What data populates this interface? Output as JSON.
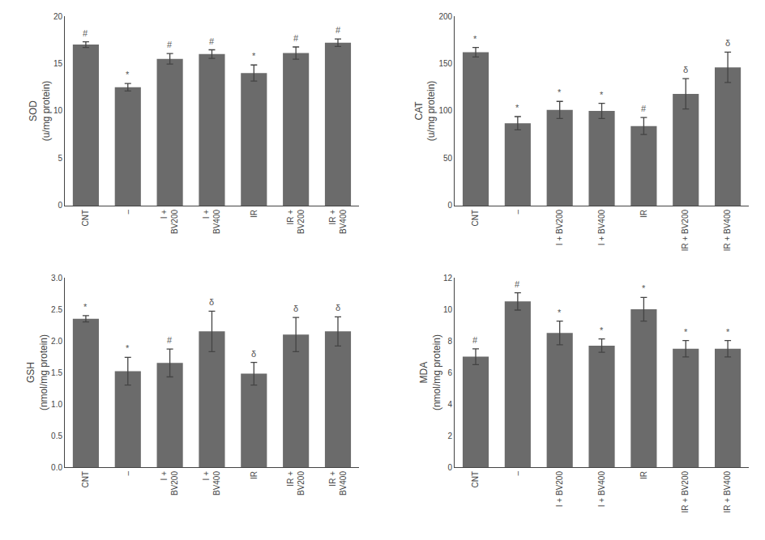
{
  "chart_data": [
    {
      "type": "bar",
      "categories": [
        "CNT",
        "–",
        "I +\nBV200",
        "I +\nBV400",
        "IR",
        "IR +\nBV200",
        "IR +\nBV400"
      ],
      "values": [
        17.0,
        12.5,
        15.5,
        16.0,
        14.0,
        16.1,
        17.2
      ],
      "errors": [
        0.3,
        0.4,
        0.55,
        0.45,
        0.85,
        0.65,
        0.4
      ],
      "annotations": [
        "#",
        "*",
        "#",
        "#",
        "*",
        "#",
        "#"
      ],
      "ylabel": "SOD\n(u/mg protein)",
      "ylim": [
        0,
        20
      ],
      "yticks": [
        0,
        5,
        10,
        15,
        20
      ],
      "color": "#6b6b6b",
      "grid": false
    },
    {
      "type": "bar",
      "categories": [
        "CNT",
        "–",
        "I + BV200",
        "I + BV400",
        "IR",
        "IR + BV200",
        "IR + BV400"
      ],
      "values": [
        162.0,
        87.0,
        101.0,
        100.0,
        84.0,
        118.0,
        146.0
      ],
      "errors": [
        5.0,
        7.0,
        9.0,
        8.0,
        9.0,
        16.0,
        16.0
      ],
      "annotations": [
        "*",
        "*",
        "*",
        "*",
        "#",
        "δ",
        "δ"
      ],
      "ylabel": "CAT\n(u/mg protein)",
      "ylim": [
        0,
        200
      ],
      "yticks": [
        0,
        50,
        100,
        150,
        200
      ],
      "color": "#6b6b6b",
      "grid": false
    },
    {
      "type": "bar",
      "categories": [
        "CNT",
        "–",
        "I +\nBV200",
        "I +\nBV400",
        "IR",
        "IR +\nBV200",
        "IR +\nBV400"
      ],
      "values": [
        2.35,
        1.52,
        1.65,
        2.15,
        1.48,
        2.1,
        2.15
      ],
      "errors": [
        0.05,
        0.22,
        0.22,
        0.32,
        0.18,
        0.27,
        0.23
      ],
      "annotations": [
        "*",
        "*",
        "#",
        "δ",
        "δ",
        "δ",
        "δ"
      ],
      "ylabel": "GSH\n(nmol/mg protein)",
      "ylim": [
        0,
        3.0
      ],
      "yticks": [
        {
          "value": 0.0,
          "label": "0.0"
        },
        0.5,
        {
          "value": 1.0,
          "label": "1.0"
        },
        1.5,
        {
          "value": 2.0,
          "label": "2.0"
        },
        2.5,
        {
          "value": 3.0,
          "label": "3.0"
        }
      ],
      "color": "#6b6b6b",
      "grid": false
    },
    {
      "type": "bar",
      "categories": [
        "CNT",
        "–",
        "I + BV200",
        "I + BV400",
        "IR",
        "IR + BV200",
        "IR + BV400"
      ],
      "values": [
        7.0,
        10.5,
        8.5,
        7.7,
        10.0,
        7.5,
        7.5
      ],
      "errors": [
        0.5,
        0.55,
        0.75,
        0.42,
        0.75,
        0.52,
        0.52
      ],
      "annotations": [
        "#",
        "#",
        "*",
        "*",
        "*",
        "*",
        "*"
      ],
      "ylabel": "MDA\n(nmol/mg protein)",
      "ylim": [
        0,
        12
      ],
      "yticks": [
        0,
        2,
        4,
        6,
        8,
        10,
        12
      ],
      "color": "#6b6b6b",
      "grid": false
    }
  ]
}
